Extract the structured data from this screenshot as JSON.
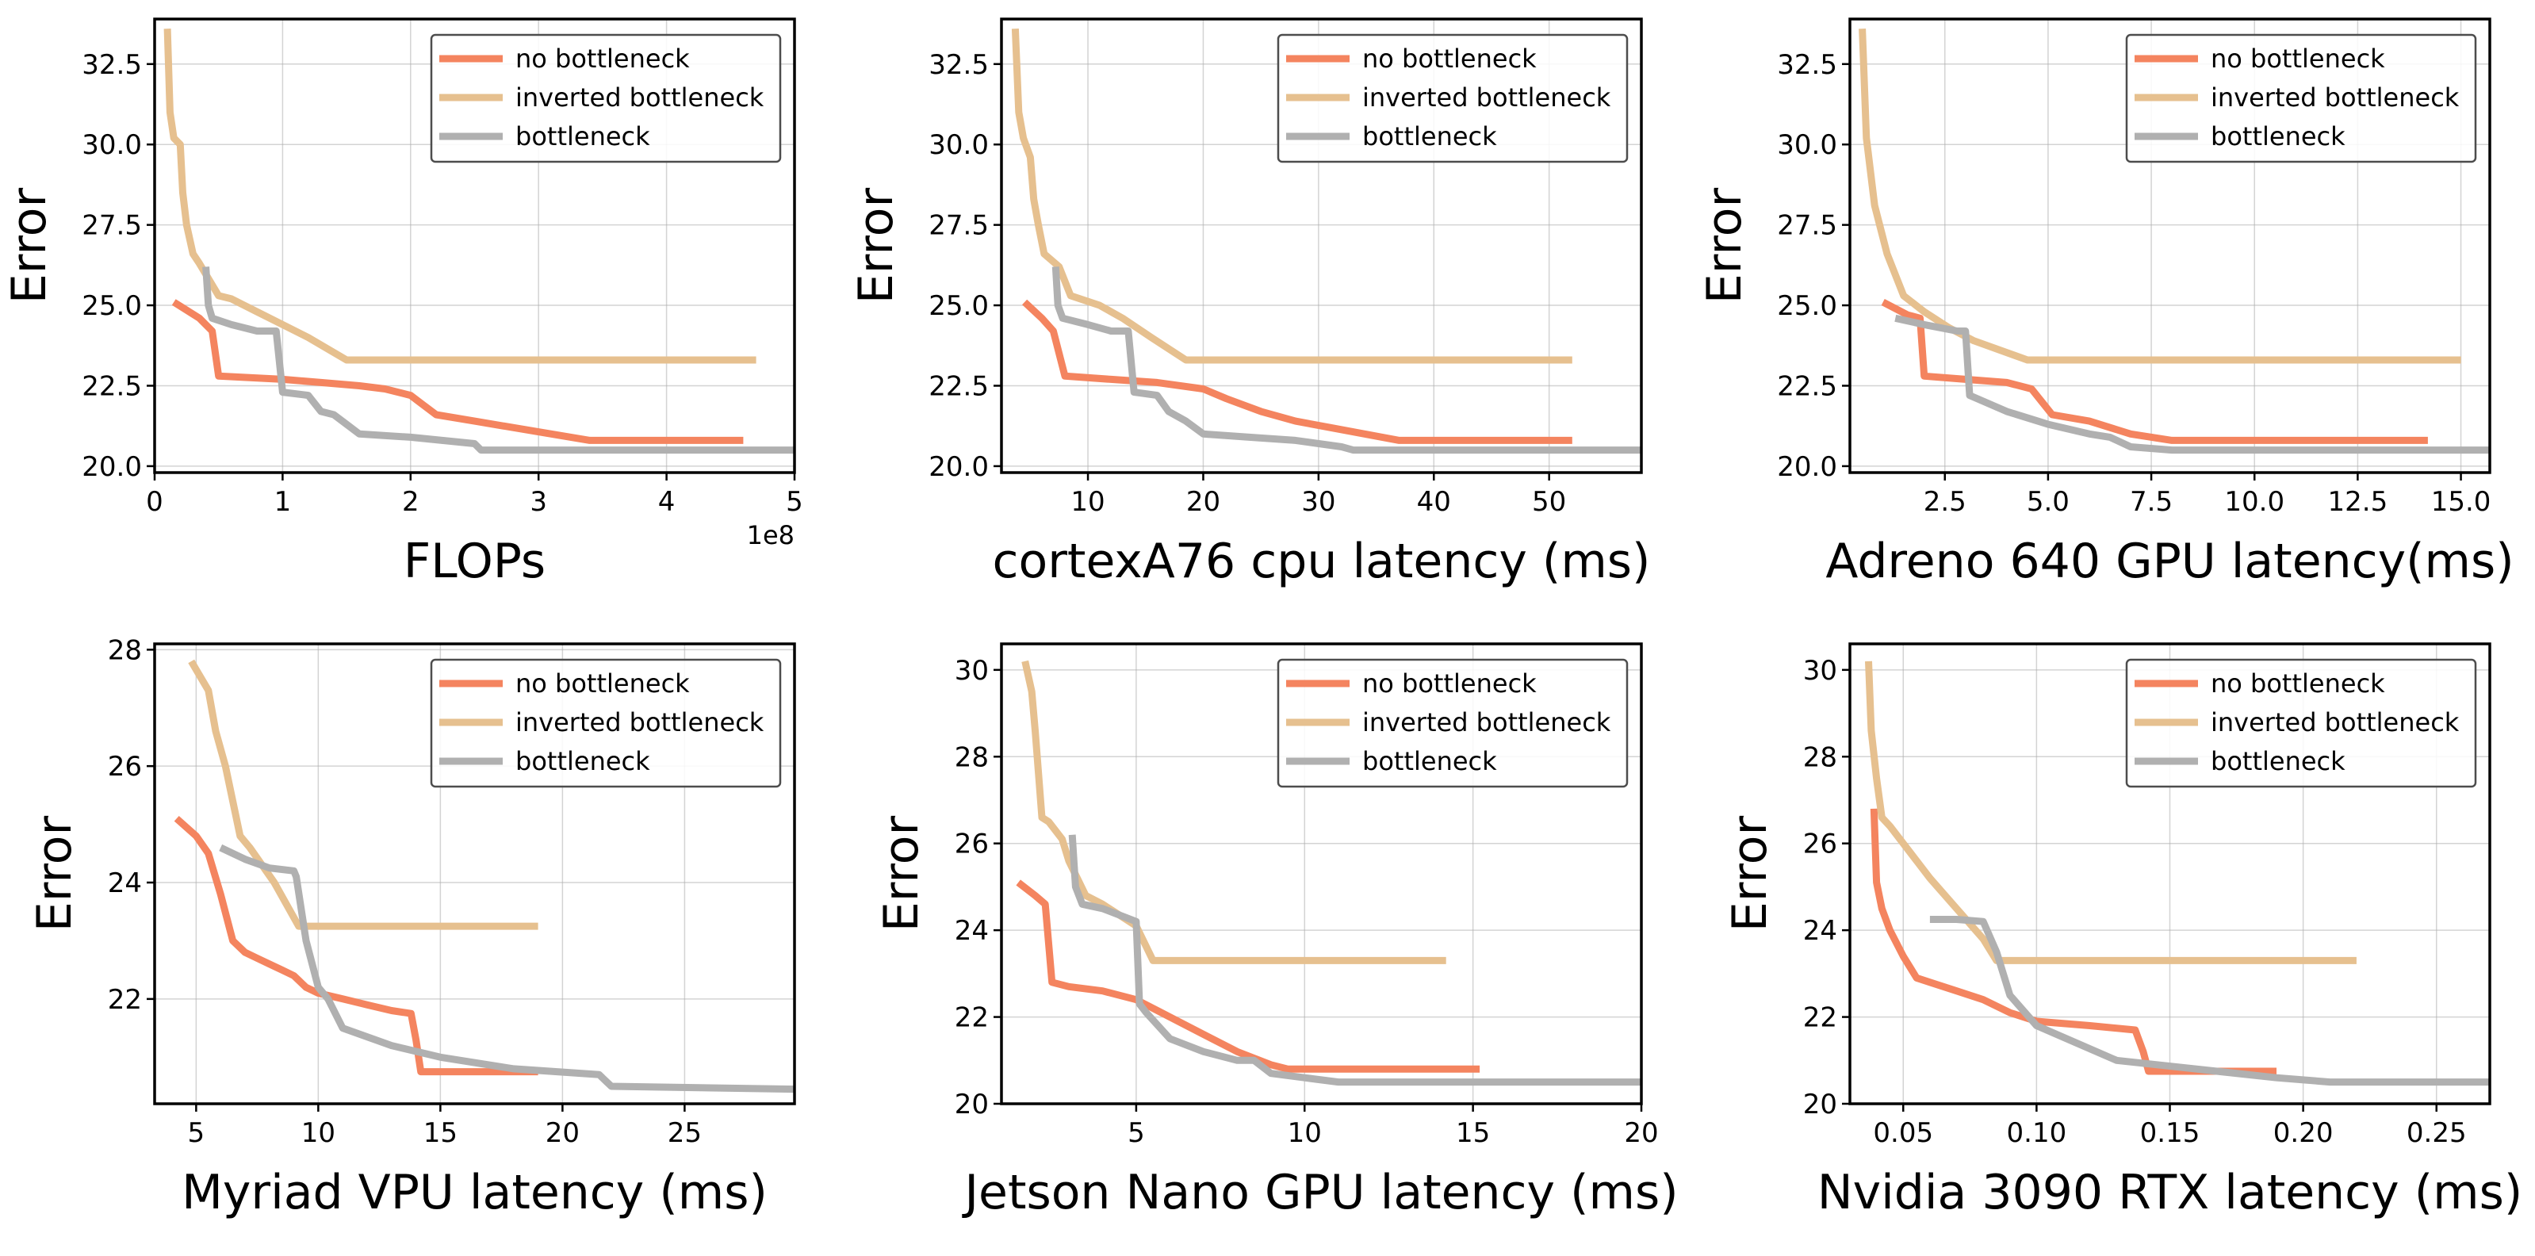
{
  "colors": {
    "no_bottleneck": "#f4845f",
    "inverted_bottleneck": "#e6c08f",
    "bottleneck": "#b0b0b0"
  },
  "chart_data": [
    {
      "type": "line",
      "xlabel": "FLOPs",
      "ylabel": "Error",
      "x_scale_note": "1e8",
      "xlim": [
        0,
        5
      ],
      "ylim": [
        19.8,
        33.9
      ],
      "x_ticks": [
        0,
        1,
        2,
        3,
        4,
        5
      ],
      "x_tick_labels": [
        "0",
        "1",
        "2",
        "3",
        "4",
        "5"
      ],
      "y_ticks": [
        20.0,
        22.5,
        25.0,
        27.5,
        30.0,
        32.5
      ],
      "y_tick_labels": [
        "20.0",
        "22.5",
        "25.0",
        "27.5",
        "30.0",
        "32.5"
      ],
      "legend": [
        "no bottleneck",
        "inverted bottleneck",
        "bottleneck"
      ],
      "series": [
        {
          "name": "no bottleneck",
          "x": [
            0.15,
            0.35,
            0.45,
            0.5,
            1.0,
            1.3,
            1.6,
            1.8,
            2.0,
            2.1,
            2.2,
            2.5,
            2.8,
            3.1,
            3.4,
            4.6
          ],
          "y": [
            25.1,
            24.6,
            24.2,
            22.8,
            22.7,
            22.6,
            22.5,
            22.4,
            22.2,
            21.9,
            21.6,
            21.4,
            21.2,
            21.0,
            20.8,
            20.8
          ]
        },
        {
          "name": "inverted bottleneck",
          "x": [
            0.1,
            0.12,
            0.15,
            0.2,
            0.22,
            0.25,
            0.3,
            0.35,
            0.5,
            0.6,
            0.8,
            1.0,
            1.2,
            1.5,
            4.7
          ],
          "y": [
            33.6,
            31.0,
            30.2,
            30.0,
            28.5,
            27.5,
            26.6,
            26.3,
            25.3,
            25.2,
            24.8,
            24.4,
            24.0,
            23.3,
            23.3
          ]
        },
        {
          "name": "bottleneck",
          "x": [
            0.4,
            0.42,
            0.45,
            0.6,
            0.8,
            0.95,
            1.0,
            1.2,
            1.3,
            1.4,
            1.5,
            1.6,
            2.0,
            2.5,
            2.55,
            5.0
          ],
          "y": [
            26.2,
            25.0,
            24.6,
            24.4,
            24.2,
            24.2,
            22.3,
            22.2,
            21.7,
            21.6,
            21.3,
            21.0,
            20.9,
            20.7,
            20.5,
            20.5
          ]
        }
      ]
    },
    {
      "type": "line",
      "xlabel": "cortexA76 cpu latency (ms)",
      "ylabel": "Error",
      "xlim": [
        2.5,
        58
      ],
      "ylim": [
        19.8,
        33.9
      ],
      "x_ticks": [
        10,
        20,
        30,
        40,
        50
      ],
      "x_tick_labels": [
        "10",
        "20",
        "30",
        "40",
        "50"
      ],
      "y_ticks": [
        20.0,
        22.5,
        25.0,
        27.5,
        30.0,
        32.5
      ],
      "y_tick_labels": [
        "20.0",
        "22.5",
        "25.0",
        "27.5",
        "30.0",
        "32.5"
      ],
      "legend": [
        "no bottleneck",
        "inverted bottleneck",
        "bottleneck"
      ],
      "series": [
        {
          "name": "no bottleneck",
          "x": [
            4.5,
            6,
            7,
            8,
            12,
            16,
            20,
            22,
            25,
            28,
            31,
            34,
            37,
            52
          ],
          "y": [
            25.1,
            24.6,
            24.2,
            22.8,
            22.7,
            22.6,
            22.4,
            22.1,
            21.7,
            21.4,
            21.2,
            21.0,
            20.8,
            20.8
          ]
        },
        {
          "name": "inverted bottleneck",
          "x": [
            3.7,
            4.0,
            4.4,
            5.0,
            5.3,
            5.7,
            6.2,
            7.5,
            8.5,
            11,
            13,
            15.5,
            18.5,
            52
          ],
          "y": [
            33.6,
            31.0,
            30.2,
            29.6,
            28.3,
            27.5,
            26.6,
            26.2,
            25.3,
            25.0,
            24.6,
            24.0,
            23.3,
            23.3
          ]
        },
        {
          "name": "bottleneck",
          "x": [
            7.2,
            7.4,
            7.8,
            10,
            12,
            13.5,
            14,
            16,
            17,
            18.5,
            20,
            24,
            28,
            32,
            33,
            58
          ],
          "y": [
            26.2,
            25.0,
            24.6,
            24.4,
            24.2,
            24.2,
            22.3,
            22.2,
            21.7,
            21.4,
            21.0,
            20.9,
            20.8,
            20.6,
            20.5,
            20.5
          ]
        }
      ]
    },
    {
      "type": "line",
      "xlabel": "Adreno 640 GPU latency(ms)",
      "ylabel": "Error",
      "xlim": [
        0.2,
        15.7
      ],
      "ylim": [
        19.8,
        33.9
      ],
      "x_ticks": [
        2.5,
        5.0,
        7.5,
        10.0,
        12.5,
        15.0
      ],
      "x_tick_labels": [
        "2.5",
        "5.0",
        "7.5",
        "10.0",
        "12.5",
        "15.0"
      ],
      "y_ticks": [
        20.0,
        22.5,
        25.0,
        27.5,
        30.0,
        32.5
      ],
      "y_tick_labels": [
        "20.0",
        "22.5",
        "25.0",
        "27.5",
        "30.0",
        "32.5"
      ],
      "legend": [
        "no bottleneck",
        "inverted bottleneck",
        "bottleneck"
      ],
      "series": [
        {
          "name": "no bottleneck",
          "x": [
            1.0,
            1.6,
            1.9,
            2.0,
            3.0,
            4.0,
            4.6,
            5.1,
            6.0,
            7.0,
            8.0,
            14.2
          ],
          "y": [
            25.1,
            24.7,
            24.6,
            22.8,
            22.7,
            22.6,
            22.4,
            21.6,
            21.4,
            21.0,
            20.8,
            20.8
          ]
        },
        {
          "name": "inverted bottleneck",
          "x": [
            0.5,
            0.6,
            0.8,
            1.1,
            1.5,
            2.0,
            2.6,
            3.2,
            4.5,
            15.0
          ],
          "y": [
            33.6,
            30.2,
            28.1,
            26.6,
            25.3,
            24.8,
            24.3,
            23.9,
            23.3,
            23.3
          ]
        },
        {
          "name": "bottleneck",
          "x": [
            1.3,
            2.0,
            2.8,
            3.0,
            3.1,
            4.0,
            5.0,
            6.0,
            6.5,
            7.0,
            8.0,
            15.7
          ],
          "y": [
            24.6,
            24.4,
            24.2,
            24.2,
            22.2,
            21.7,
            21.3,
            21.0,
            20.9,
            20.6,
            20.5,
            20.5
          ]
        }
      ]
    },
    {
      "type": "line",
      "xlabel": "Myriad VPU latency (ms)",
      "ylabel": "Error",
      "xlim": [
        3.3,
        29.5
      ],
      "ylim": [
        20.2,
        28.1
      ],
      "x_ticks": [
        5,
        10,
        15,
        20,
        25
      ],
      "x_tick_labels": [
        "5",
        "10",
        "15",
        "20",
        "25"
      ],
      "y_ticks": [
        22,
        24,
        26,
        28
      ],
      "y_tick_labels": [
        "22",
        "24",
        "26",
        "28"
      ],
      "legend": [
        "no bottleneck",
        "inverted bottleneck",
        "bottleneck"
      ],
      "series": [
        {
          "name": "no bottleneck",
          "x": [
            4.2,
            5.0,
            5.5,
            6.0,
            6.5,
            7.0,
            7.5,
            8.0,
            8.5,
            9.0,
            9.5,
            10.0,
            11.0,
            12.0,
            13.0,
            13.8,
            14.0,
            14.2,
            19.0
          ],
          "y": [
            25.1,
            24.8,
            24.5,
            23.8,
            23.0,
            22.8,
            22.7,
            22.6,
            22.5,
            22.4,
            22.2,
            22.1,
            22.0,
            21.9,
            21.8,
            21.75,
            21.3,
            20.75,
            20.75
          ]
        },
        {
          "name": "inverted bottleneck",
          "x": [
            4.8,
            5.5,
            5.8,
            6.2,
            6.8,
            7.2,
            8.2,
            9.2,
            19.0
          ],
          "y": [
            27.8,
            27.3,
            26.6,
            26.0,
            24.8,
            24.6,
            24.0,
            23.25,
            23.25
          ]
        },
        {
          "name": "bottleneck",
          "x": [
            6.0,
            7.0,
            8.0,
            9.0,
            9.1,
            9.5,
            10.0,
            10.4,
            11.0,
            13.0,
            15.0,
            18.0,
            21.5,
            22.0,
            29.5
          ],
          "y": [
            24.6,
            24.4,
            24.25,
            24.2,
            24.1,
            23.0,
            22.2,
            22.0,
            21.5,
            21.2,
            21.0,
            20.8,
            20.7,
            20.5,
            20.45
          ]
        }
      ]
    },
    {
      "type": "line",
      "xlabel": "Jetson Nano GPU latency (ms)",
      "ylabel": "Error",
      "xlim": [
        1.0,
        20.0
      ],
      "ylim": [
        20.0,
        30.6
      ],
      "x_ticks": [
        5,
        10,
        15,
        20
      ],
      "x_tick_labels": [
        "5",
        "10",
        "15",
        "20"
      ],
      "y_ticks": [
        20,
        22,
        24,
        26,
        28,
        30
      ],
      "y_tick_labels": [
        "20",
        "22",
        "24",
        "26",
        "28",
        "30"
      ],
      "legend": [
        "no bottleneck",
        "inverted bottleneck",
        "bottleneck"
      ],
      "series": [
        {
          "name": "no bottleneck",
          "x": [
            1.5,
            2.0,
            2.3,
            2.5,
            3.0,
            4.0,
            5.0,
            5.5,
            6.0,
            7.0,
            8.0,
            9.0,
            9.5,
            15.2
          ],
          "y": [
            25.1,
            24.8,
            24.6,
            22.8,
            22.7,
            22.6,
            22.4,
            22.2,
            22.0,
            21.6,
            21.2,
            20.9,
            20.8,
            20.8
          ]
        },
        {
          "name": "inverted bottleneck",
          "x": [
            1.7,
            1.9,
            2.0,
            2.2,
            2.4,
            2.8,
            3.0,
            3.5,
            4.0,
            5.0,
            5.5,
            14.2
          ],
          "y": [
            30.2,
            29.5,
            28.6,
            26.6,
            26.5,
            26.1,
            25.6,
            24.8,
            24.6,
            24.1,
            23.3,
            23.3
          ]
        },
        {
          "name": "bottleneck",
          "x": [
            3.1,
            3.2,
            3.4,
            4.0,
            5.0,
            5.1,
            5.3,
            6.0,
            7.0,
            8.0,
            8.5,
            9.0,
            10.0,
            11.0,
            20.0
          ],
          "y": [
            26.2,
            25.0,
            24.6,
            24.5,
            24.2,
            22.3,
            22.1,
            21.5,
            21.2,
            21.0,
            21.0,
            20.7,
            20.6,
            20.5,
            20.5
          ]
        }
      ]
    },
    {
      "type": "line",
      "xlabel": "Nvidia 3090 RTX latency (ms)",
      "ylabel": "Error",
      "xlim": [
        0.03,
        0.27
      ],
      "ylim": [
        20.0,
        30.6
      ],
      "x_ticks": [
        0.05,
        0.1,
        0.15,
        0.2,
        0.25
      ],
      "x_tick_labels": [
        "0.05",
        "0.10",
        "0.15",
        "0.20",
        "0.25"
      ],
      "y_ticks": [
        20,
        22,
        24,
        26,
        28,
        30
      ],
      "y_tick_labels": [
        "20",
        "22",
        "24",
        "26",
        "28",
        "30"
      ],
      "legend": [
        "no bottleneck",
        "inverted bottleneck",
        "bottleneck"
      ],
      "series": [
        {
          "name": "no bottleneck",
          "x": [
            0.039,
            0.04,
            0.042,
            0.045,
            0.05,
            0.055,
            0.06,
            0.07,
            0.08,
            0.09,
            0.1,
            0.12,
            0.137,
            0.14,
            0.142,
            0.19
          ],
          "y": [
            26.8,
            25.1,
            24.5,
            24.0,
            23.4,
            22.9,
            22.8,
            22.6,
            22.4,
            22.1,
            21.9,
            21.8,
            21.7,
            21.2,
            20.75,
            20.75
          ]
        },
        {
          "name": "inverted bottleneck",
          "x": [
            0.037,
            0.038,
            0.04,
            0.042,
            0.045,
            0.05,
            0.06,
            0.07,
            0.08,
            0.085,
            0.22
          ],
          "y": [
            30.2,
            28.6,
            27.5,
            26.6,
            26.4,
            26.0,
            25.2,
            24.5,
            23.8,
            23.3,
            23.3
          ]
        },
        {
          "name": "bottleneck",
          "x": [
            0.06,
            0.07,
            0.08,
            0.085,
            0.09,
            0.1,
            0.115,
            0.13,
            0.16,
            0.19,
            0.21,
            0.27
          ],
          "y": [
            24.25,
            24.25,
            24.2,
            23.5,
            22.5,
            21.8,
            21.4,
            21.0,
            20.8,
            20.6,
            20.5,
            20.5
          ]
        }
      ]
    }
  ]
}
